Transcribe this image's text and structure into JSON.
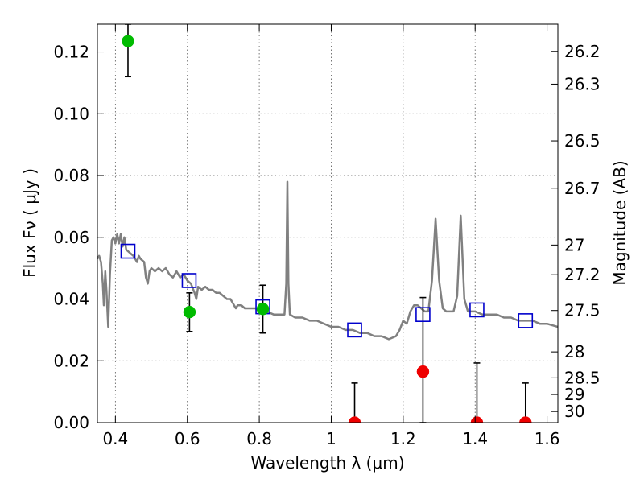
{
  "chart_data": {
    "type": "scatter",
    "xlabel": "Wavelength  λ (μm)",
    "ylabel": "Flux  Fν  ( μJy )",
    "y2label": "Magnitude (AB)",
    "xlim": [
      0.35,
      1.63
    ],
    "ylim": [
      0.0,
      0.129
    ],
    "grid": true,
    "x_ticks": [
      0.4,
      0.6,
      0.8,
      1.0,
      1.2,
      1.4,
      1.6
    ],
    "x_tick_labels": [
      "0.4",
      "0.6",
      "0.8",
      "1",
      "1.2",
      "1.4",
      "1.6"
    ],
    "y_ticks": [
      0.0,
      0.02,
      0.04,
      0.06,
      0.08,
      0.1,
      0.12
    ],
    "y_tick_labels": [
      "0.00",
      "0.02",
      "0.04",
      "0.06",
      "0.08",
      "0.10",
      "0.12"
    ],
    "mag_ticks": [
      {
        "label": "26.2",
        "flux": 0.1202
      },
      {
        "label": "26.3",
        "flux": 0.1096
      },
      {
        "label": "26.5",
        "flux": 0.0912
      },
      {
        "label": "26.7",
        "flux": 0.0759
      },
      {
        "label": "27",
        "flux": 0.0575
      },
      {
        "label": "27.2",
        "flux": 0.0479
      },
      {
        "label": "27.5",
        "flux": 0.0363
      },
      {
        "label": "28",
        "flux": 0.0229
      },
      {
        "label": "28.5",
        "flux": 0.0145
      },
      {
        "label": "29",
        "flux": 0.0091
      },
      {
        "label": "30",
        "flux": 0.0036
      }
    ],
    "series": [
      {
        "kind": "model-spectrum",
        "color": "#808080",
        "points": [
          [
            0.35,
            0.053
          ],
          [
            0.355,
            0.054
          ],
          [
            0.36,
            0.052
          ],
          [
            0.365,
            0.045
          ],
          [
            0.368,
            0.038
          ],
          [
            0.372,
            0.049
          ],
          [
            0.375,
            0.043
          ],
          [
            0.378,
            0.036
          ],
          [
            0.38,
            0.031
          ],
          [
            0.385,
            0.048
          ],
          [
            0.39,
            0.059
          ],
          [
            0.395,
            0.06
          ],
          [
            0.4,
            0.058
          ],
          [
            0.405,
            0.061
          ],
          [
            0.41,
            0.058
          ],
          [
            0.415,
            0.061
          ],
          [
            0.42,
            0.057
          ],
          [
            0.425,
            0.06
          ],
          [
            0.43,
            0.056
          ],
          [
            0.44,
            0.055
          ],
          [
            0.45,
            0.054
          ],
          [
            0.46,
            0.052
          ],
          [
            0.465,
            0.054
          ],
          [
            0.47,
            0.053
          ],
          [
            0.48,
            0.052
          ],
          [
            0.485,
            0.047
          ],
          [
            0.49,
            0.045
          ],
          [
            0.495,
            0.049
          ],
          [
            0.5,
            0.05
          ],
          [
            0.51,
            0.049
          ],
          [
            0.52,
            0.05
          ],
          [
            0.53,
            0.049
          ],
          [
            0.54,
            0.05
          ],
          [
            0.55,
            0.048
          ],
          [
            0.56,
            0.047
          ],
          [
            0.57,
            0.049
          ],
          [
            0.58,
            0.047
          ],
          [
            0.59,
            0.048
          ],
          [
            0.6,
            0.046
          ],
          [
            0.61,
            0.045
          ],
          [
            0.62,
            0.042
          ],
          [
            0.625,
            0.04
          ],
          [
            0.63,
            0.044
          ],
          [
            0.64,
            0.043
          ],
          [
            0.65,
            0.044
          ],
          [
            0.66,
            0.043
          ],
          [
            0.67,
            0.043
          ],
          [
            0.68,
            0.042
          ],
          [
            0.69,
            0.042
          ],
          [
            0.7,
            0.041
          ],
          [
            0.71,
            0.04
          ],
          [
            0.72,
            0.04
          ],
          [
            0.73,
            0.038
          ],
          [
            0.735,
            0.037
          ],
          [
            0.74,
            0.038
          ],
          [
            0.75,
            0.038
          ],
          [
            0.76,
            0.037
          ],
          [
            0.77,
            0.037
          ],
          [
            0.78,
            0.037
          ],
          [
            0.79,
            0.037
          ],
          [
            0.8,
            0.036
          ],
          [
            0.82,
            0.036
          ],
          [
            0.84,
            0.035
          ],
          [
            0.86,
            0.035
          ],
          [
            0.87,
            0.035
          ],
          [
            0.875,
            0.045
          ],
          [
            0.878,
            0.078
          ],
          [
            0.881,
            0.045
          ],
          [
            0.885,
            0.035
          ],
          [
            0.9,
            0.034
          ],
          [
            0.92,
            0.034
          ],
          [
            0.94,
            0.033
          ],
          [
            0.96,
            0.033
          ],
          [
            0.98,
            0.032
          ],
          [
            1.0,
            0.031
          ],
          [
            1.02,
            0.031
          ],
          [
            1.04,
            0.03
          ],
          [
            1.06,
            0.03
          ],
          [
            1.08,
            0.029
          ],
          [
            1.1,
            0.029
          ],
          [
            1.12,
            0.028
          ],
          [
            1.14,
            0.028
          ],
          [
            1.16,
            0.027
          ],
          [
            1.18,
            0.028
          ],
          [
            1.19,
            0.03
          ],
          [
            1.2,
            0.033
          ],
          [
            1.21,
            0.032
          ],
          [
            1.22,
            0.036
          ],
          [
            1.23,
            0.038
          ],
          [
            1.24,
            0.038
          ],
          [
            1.25,
            0.037
          ],
          [
            1.26,
            0.036
          ],
          [
            1.27,
            0.036
          ],
          [
            1.28,
            0.046
          ],
          [
            1.29,
            0.066
          ],
          [
            1.3,
            0.046
          ],
          [
            1.31,
            0.037
          ],
          [
            1.32,
            0.036
          ],
          [
            1.33,
            0.036
          ],
          [
            1.34,
            0.036
          ],
          [
            1.35,
            0.041
          ],
          [
            1.36,
            0.067
          ],
          [
            1.37,
            0.04
          ],
          [
            1.38,
            0.036
          ],
          [
            1.4,
            0.036
          ],
          [
            1.42,
            0.035
          ],
          [
            1.44,
            0.035
          ],
          [
            1.46,
            0.035
          ],
          [
            1.48,
            0.034
          ],
          [
            1.5,
            0.034
          ],
          [
            1.52,
            0.033
          ],
          [
            1.54,
            0.033
          ],
          [
            1.56,
            0.033
          ],
          [
            1.58,
            0.032
          ],
          [
            1.6,
            0.032
          ],
          [
            1.63,
            0.031
          ]
        ]
      },
      {
        "kind": "model-band-flux",
        "marker": "open-square",
        "color": "#0000cc",
        "points": [
          {
            "x": 0.435,
            "y": 0.0555
          },
          {
            "x": 0.605,
            "y": 0.046
          },
          {
            "x": 0.81,
            "y": 0.0375
          },
          {
            "x": 1.065,
            "y": 0.03
          },
          {
            "x": 1.255,
            "y": 0.035
          },
          {
            "x": 1.405,
            "y": 0.0365
          },
          {
            "x": 1.54,
            "y": 0.033
          }
        ]
      },
      {
        "kind": "detections",
        "marker": "filled-circle",
        "color": "#00bb00",
        "points": [
          {
            "x": 0.435,
            "y": 0.1235,
            "err_low": 0.112,
            "err_high": 0.129
          },
          {
            "x": 0.606,
            "y": 0.0358,
            "err_low": 0.0295,
            "err_high": 0.042
          },
          {
            "x": 0.81,
            "y": 0.0368,
            "err_low": 0.029,
            "err_high": 0.0445
          }
        ]
      },
      {
        "kind": "non-detections",
        "marker": "filled-circle",
        "color": "#ee0000",
        "points": [
          {
            "x": 1.065,
            "y": 0.0,
            "err_low": 0.0,
            "err_high": 0.0128
          },
          {
            "x": 1.255,
            "y": 0.0165,
            "err_low": 0.0,
            "err_high": 0.0405
          },
          {
            "x": 1.405,
            "y": 0.0,
            "err_low": 0.0,
            "err_high": 0.0193
          },
          {
            "x": 1.54,
            "y": 0.0,
            "err_low": 0.0,
            "err_high": 0.0128
          }
        ]
      }
    ]
  }
}
